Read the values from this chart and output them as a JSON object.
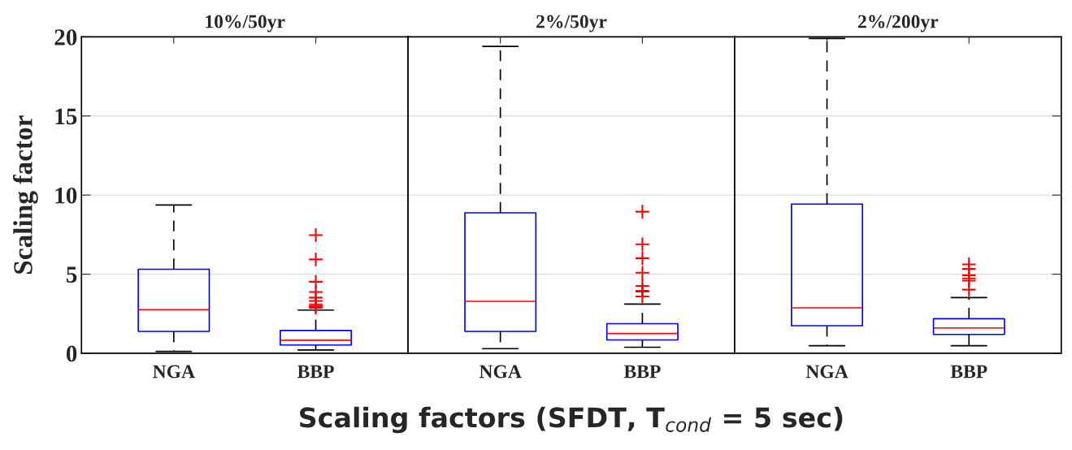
{
  "chart_data": [
    {
      "type": "box",
      "title": "10%/50yr",
      "ylabel": "Scaling factor",
      "categories": [
        "NGA",
        "BBP"
      ],
      "ylim": [
        0,
        20
      ],
      "yticks": [
        0,
        5,
        10,
        15,
        20
      ],
      "grid": "y",
      "series": [
        {
          "color": "#0000ff",
          "boxes": [
            {
              "low": 0.12,
              "q1": 1.38,
              "median": 2.75,
              "q3": 5.31,
              "high": 9.37
            },
            {
              "low": 0.21,
              "q1": 0.52,
              "median": 0.82,
              "q3": 1.44,
              "high": 2.73,
              "outliers": [
                7.47,
                5.93,
                4.52,
                3.87,
                3.52,
                3.31,
                3.09,
                2.97,
                2.87
              ]
            }
          ]
        }
      ]
    },
    {
      "type": "box",
      "title": "2%/50yr",
      "xlabel": "Scaling factors (SFDT, T$_{cond}$ = 5 sec)",
      "categories": [
        "NGA",
        "BBP"
      ],
      "ylim": [
        0,
        20
      ],
      "yticks": [
        0,
        5,
        10,
        15,
        20
      ],
      "grid": "y",
      "tick_labels": "x",
      "series": [
        {
          "color": "#0000ff",
          "boxes": [
            {
              "low": 0.29,
              "q1": 1.38,
              "median": 3.28,
              "q3": 8.88,
              "high": 19.4
            },
            {
              "low": 0.38,
              "q1": 0.84,
              "median": 1.25,
              "q3": 1.87,
              "high": 3.11,
              "outliers": [
                8.95,
                6.89,
                6.01,
                5.09,
                4.26,
                3.95,
                3.9,
                3.59
              ]
            }
          ]
        }
      ]
    },
    {
      "type": "box",
      "title": "2%/200yr",
      "categories": [
        "NGA",
        "BBP"
      ],
      "ylim": [
        0,
        20
      ],
      "yticks": [
        0,
        5,
        10,
        15,
        20
      ],
      "grid": "y",
      "tick_labels": "x",
      "series": [
        {
          "color": "#0000ff",
          "boxes": [
            {
              "low": 0.48,
              "q1": 1.74,
              "median": 2.87,
              "q3": 9.43,
              "high": 19.9
            },
            {
              "low": 0.48,
              "q1": 1.19,
              "median": 1.6,
              "q3": 2.18,
              "high": 3.52,
              "outliers": [
                5.62,
                5.33,
                4.93,
                4.73,
                4.59,
                4.02
              ]
            }
          ]
        }
      ]
    }
  ]
}
